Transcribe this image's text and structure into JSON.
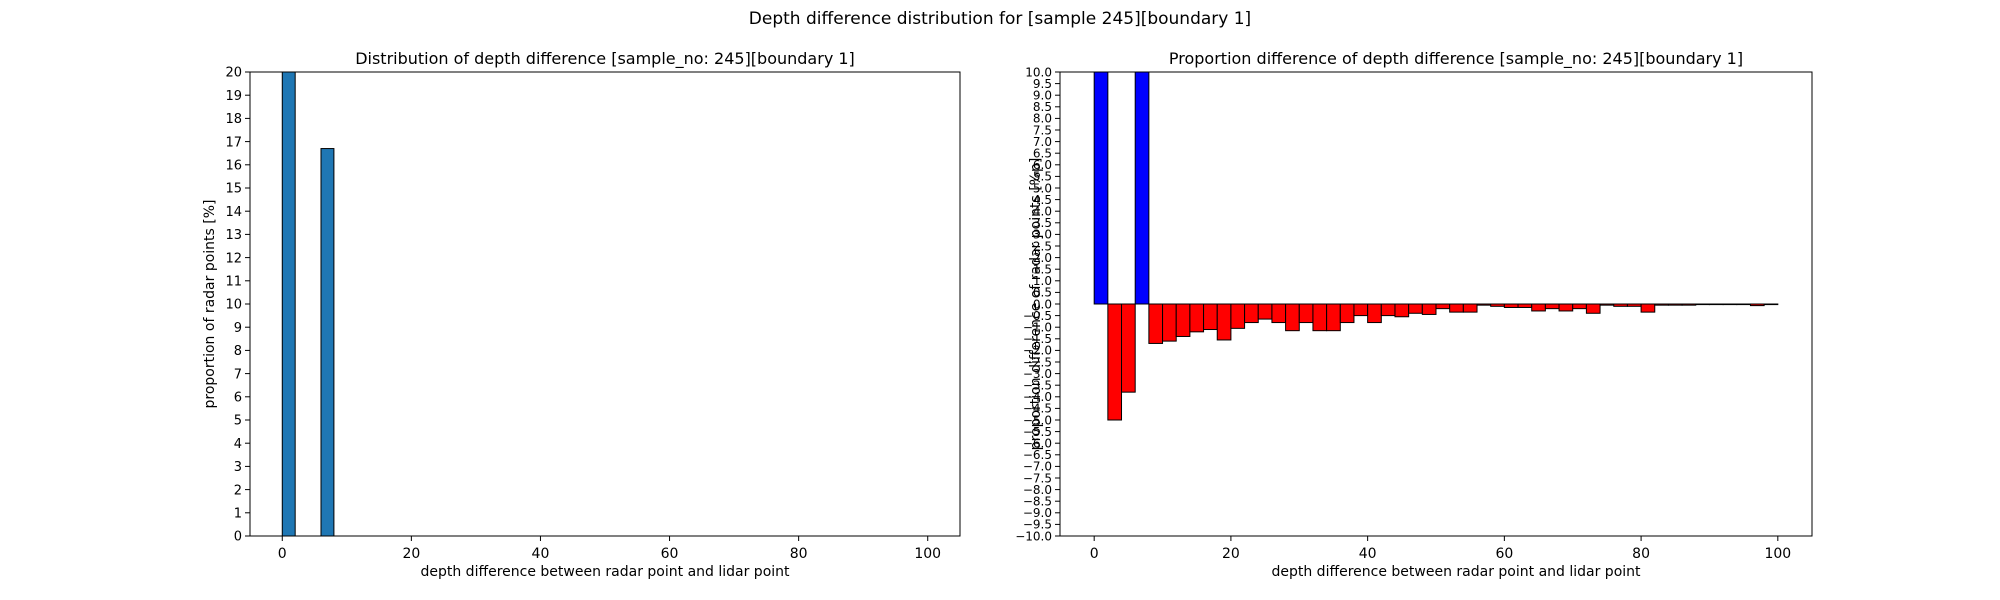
{
  "suptitle": "Depth difference distribution for [sample 245][boundary 1]",
  "chart_data": [
    {
      "type": "bar",
      "title": "Distribution of depth difference [sample_no: 245][boundary 1]",
      "xlabel": "depth difference between radar point and lidar point",
      "ylabel": "proportion of radar points [%]",
      "xlim": [
        -5,
        105
      ],
      "ylim": [
        0,
        20
      ],
      "xticks": [
        0,
        20,
        40,
        60,
        80,
        100
      ],
      "xtick_labels": [
        "0",
        "20",
        "40",
        "60",
        "80",
        "100"
      ],
      "yticks": [
        0,
        1,
        2,
        3,
        4,
        5,
        6,
        7,
        8,
        9,
        10,
        11,
        12,
        13,
        14,
        15,
        16,
        17,
        18,
        19,
        20
      ],
      "ytick_labels": [
        "0",
        "1",
        "2",
        "3",
        "4",
        "5",
        "6",
        "7",
        "8",
        "9",
        "10",
        "11",
        "12",
        "13",
        "14",
        "15",
        "16",
        "17",
        "18",
        "19",
        "20"
      ],
      "bar_width": 2,
      "bar_color": "#1f77b4",
      "edge_color": "#000000",
      "x": [
        1,
        7
      ],
      "values": [
        20,
        16.7
      ]
    },
    {
      "type": "bar",
      "title": "Proportion difference of depth difference [sample_no: 245][boundary 1]",
      "xlabel": "depth difference between radar point and lidar point",
      "ylabel": "proportion difference of radar points [%p]",
      "xlim": [
        -5,
        105
      ],
      "ylim": [
        -10,
        10
      ],
      "xticks": [
        0,
        20,
        40,
        60,
        80,
        100
      ],
      "xtick_labels": [
        "0",
        "20",
        "40",
        "60",
        "80",
        "100"
      ],
      "yticks": [
        -10,
        -9.5,
        -9,
        -8.5,
        -8,
        -7.5,
        -7,
        -6.5,
        -6,
        -5.5,
        -5,
        -4.5,
        -4,
        -3.5,
        -3,
        -2.5,
        -2,
        -1.5,
        -1,
        -0.5,
        0,
        0.5,
        1,
        1.5,
        2,
        2.5,
        3,
        3.5,
        4,
        4.5,
        5,
        5.5,
        6,
        6.5,
        7,
        7.5,
        8,
        8.5,
        9,
        9.5,
        10
      ],
      "ytick_labels": [
        "−10.0",
        "−9.5",
        "−9.0",
        "−8.5",
        "−8.0",
        "−7.5",
        "−7.0",
        "−6.5",
        "−6.0",
        "−5.5",
        "−5.0",
        "−4.5",
        "−4.0",
        "−3.5",
        "−3.0",
        "−2.5",
        "−2.0",
        "−1.5",
        "−1.0",
        "−0.5",
        "0.0",
        "0.5",
        "1.0",
        "1.5",
        "2.0",
        "2.5",
        "3.0",
        "3.5",
        "4.0",
        "4.5",
        "5.0",
        "5.5",
        "6.0",
        "6.5",
        "7.0",
        "7.5",
        "8.0",
        "8.5",
        "9.0",
        "9.5",
        "10.0"
      ],
      "bar_width": 2,
      "positive_color": "#0000ff",
      "negative_color": "#ff0000",
      "edge_color": "#000000",
      "x": [
        1,
        3,
        5,
        7,
        9,
        11,
        13,
        15,
        17,
        19,
        21,
        23,
        25,
        27,
        29,
        31,
        33,
        35,
        37,
        39,
        41,
        43,
        45,
        47,
        49,
        51,
        53,
        55,
        57,
        59,
        61,
        63,
        65,
        67,
        69,
        71,
        73,
        75,
        77,
        79,
        81,
        83,
        85,
        87,
        89,
        91,
        93,
        95,
        97,
        99
      ],
      "values": [
        10,
        -5,
        -3.8,
        10,
        -1.7,
        -1.6,
        -1.4,
        -1.2,
        -1.1,
        -1.55,
        -1.05,
        -0.8,
        -0.65,
        -0.8,
        -1.15,
        -0.8,
        -1.15,
        -1.15,
        -0.8,
        -0.5,
        -0.8,
        -0.5,
        -0.55,
        -0.4,
        -0.45,
        -0.2,
        -0.35,
        -0.35,
        -0.05,
        -0.1,
        -0.15,
        -0.15,
        -0.3,
        -0.2,
        -0.3,
        -0.2,
        -0.4,
        -0.05,
        -0.1,
        -0.1,
        -0.35,
        -0.05,
        -0.05,
        -0.05,
        -0.02,
        -0.02,
        -0.02,
        -0.02,
        -0.07,
        -0.02
      ]
    }
  ]
}
